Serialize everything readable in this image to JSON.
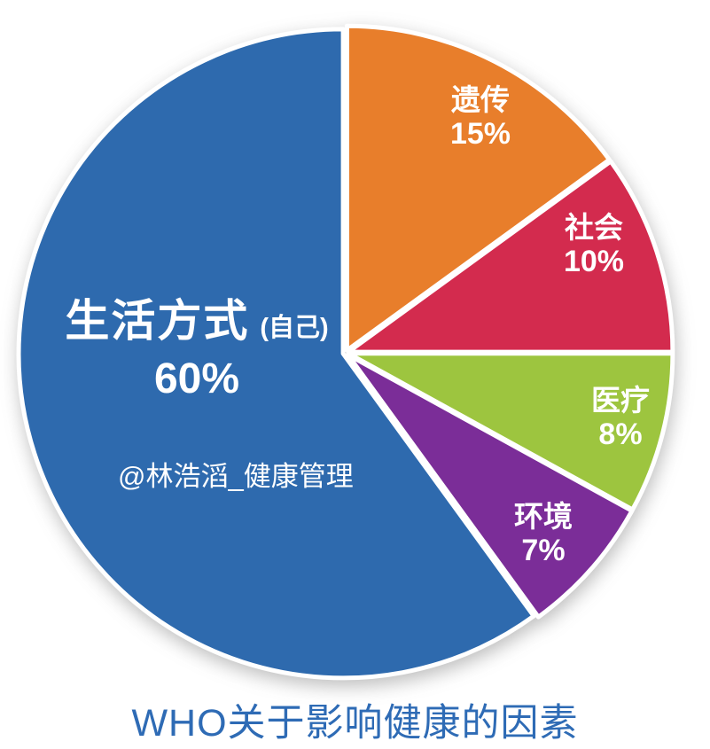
{
  "chart_data": {
    "type": "pie",
    "title": "WHO关于影响健康的因素",
    "title_color": "#2E6BB5",
    "label_color": "#FFFFFF",
    "start_angle_deg": 0,
    "direction": "clockwise",
    "slices": [
      {
        "id": "genetics",
        "label": "遗传",
        "value": 15,
        "percent_label": "15%",
        "color": "#E87E2B"
      },
      {
        "id": "society",
        "label": "社会",
        "value": 10,
        "percent_label": "10%",
        "color": "#D32B4E"
      },
      {
        "id": "medical",
        "label": "医疗",
        "value": 8,
        "percent_label": "8%",
        "color": "#9DC53F"
      },
      {
        "id": "environment",
        "label": "环境",
        "value": 7,
        "percent_label": "7%",
        "color": "#7B2D98"
      },
      {
        "id": "lifestyle",
        "label": "生活方式",
        "label_suffix": "(自己)",
        "value": 60,
        "percent_label": "60%",
        "color": "#2E6AAE"
      }
    ]
  },
  "watermark": "@林浩滔_健康管理"
}
